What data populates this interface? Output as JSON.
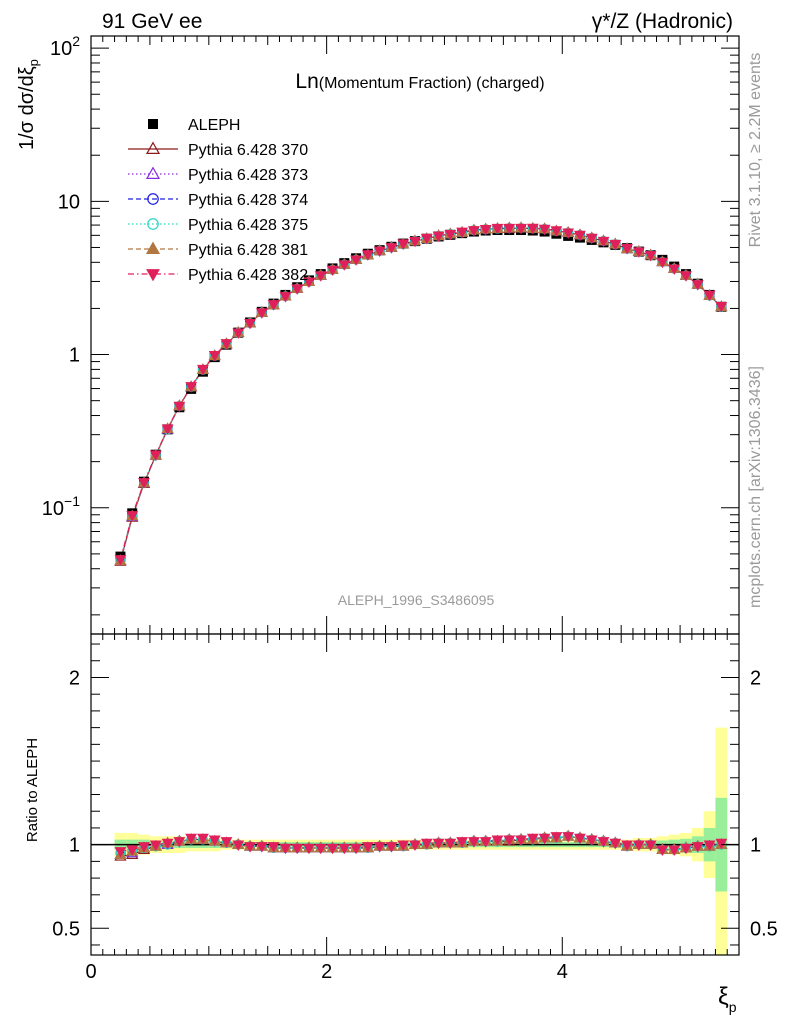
{
  "header": {
    "left_label": "91 GeV ee",
    "right_label": "γ*/Z (Hadronic)"
  },
  "side_labels": {
    "rivet": "Rivet 3.1.10, ≥ 2.2M events",
    "mcplots": "mcplots.cern.ch [arXiv:1306.3436]"
  },
  "chart_data": {
    "type": "scatter",
    "title_prefix": "Ln",
    "title_rest": "(Momentum Fraction) (charged)",
    "analysis_id": "ALEPH_1996_S3486095",
    "xlabel_main": "ξ",
    "xlabel_sub": "p",
    "ylabel": "1/σ dσ/dξ",
    "ylabel_sub": "p",
    "ratio_ylabel": "Ratio to ALEPH",
    "xlim": [
      0,
      5.5
    ],
    "ylim": [
      0.015,
      120
    ],
    "yscale": "log",
    "ratio_ylim": [
      0.34,
      2.26
    ],
    "x_ticks": [
      "0",
      "2",
      "4"
    ],
    "y_ticks_main": [
      {
        "mant": "10",
        "exp": "2",
        "v": 100
      },
      {
        "mant": "10",
        "exp": "",
        "v": 10
      },
      {
        "mant": "1",
        "exp": "",
        "v": 1
      },
      {
        "mant": "10",
        "exp": "−1",
        "v": 0.1
      }
    ],
    "y_ticks_ratio": [
      "0.5",
      "1",
      "2"
    ],
    "x": [
      0.25,
      0.35,
      0.45,
      0.55,
      0.65,
      0.75,
      0.85,
      0.95,
      1.05,
      1.15,
      1.25,
      1.35,
      1.45,
      1.55,
      1.65,
      1.75,
      1.85,
      1.95,
      2.05,
      2.15,
      2.25,
      2.35,
      2.45,
      2.55,
      2.65,
      2.75,
      2.85,
      2.95,
      3.05,
      3.15,
      3.25,
      3.35,
      3.45,
      3.55,
      3.65,
      3.75,
      3.85,
      3.95,
      4.05,
      4.15,
      4.25,
      4.35,
      4.45,
      4.55,
      4.65,
      4.75,
      4.85,
      4.95,
      5.05,
      5.15,
      5.25,
      5.35
    ],
    "data_values": [
      0.048,
      0.092,
      0.148,
      0.222,
      0.325,
      0.453,
      0.597,
      0.773,
      0.962,
      1.16,
      1.39,
      1.62,
      1.9,
      2.15,
      2.45,
      2.75,
      3.05,
      3.35,
      3.65,
      3.95,
      4.25,
      4.55,
      4.8,
      5.05,
      5.3,
      5.5,
      5.7,
      5.9,
      6.05,
      6.2,
      6.35,
      6.45,
      6.5,
      6.5,
      6.5,
      6.45,
      6.35,
      6.15,
      5.95,
      5.8,
      5.6,
      5.4,
      5.2,
      4.95,
      4.7,
      4.45,
      4.15,
      3.75,
      3.35,
      2.9,
      2.45,
      2.05
    ],
    "ratio_band_yellow": [
      0.07,
      0.07,
      0.06,
      0.05,
      0.05,
      0.05,
      0.04,
      0.04,
      0.04,
      0.03,
      0.03,
      0.03,
      0.03,
      0.03,
      0.03,
      0.03,
      0.03,
      0.03,
      0.03,
      0.03,
      0.03,
      0.03,
      0.03,
      0.03,
      0.03,
      0.03,
      0.03,
      0.03,
      0.03,
      0.03,
      0.03,
      0.03,
      0.03,
      0.03,
      0.03,
      0.03,
      0.03,
      0.03,
      0.03,
      0.03,
      0.03,
      0.03,
      0.03,
      0.03,
      0.04,
      0.04,
      0.05,
      0.06,
      0.07,
      0.1,
      0.2,
      0.7
    ],
    "ratio_band_green": [
      0.03,
      0.03,
      0.03,
      0.02,
      0.02,
      0.02,
      0.02,
      0.02,
      0.02,
      0.015,
      0.015,
      0.015,
      0.015,
      0.015,
      0.015,
      0.015,
      0.015,
      0.015,
      0.015,
      0.015,
      0.015,
      0.015,
      0.015,
      0.015,
      0.015,
      0.015,
      0.015,
      0.015,
      0.015,
      0.015,
      0.015,
      0.015,
      0.015,
      0.015,
      0.015,
      0.015,
      0.015,
      0.015,
      0.015,
      0.015,
      0.015,
      0.015,
      0.015,
      0.015,
      0.02,
      0.02,
      0.025,
      0.03,
      0.035,
      0.05,
      0.1,
      0.28
    ],
    "series": [
      {
        "name": "ALEPH",
        "marker": "square",
        "color": "#000000",
        "line": "none"
      },
      {
        "name": "Pythia 6.428 370",
        "marker": "triangle-open",
        "color": "#8b1a1a",
        "line": "solid",
        "ratio": [
          0.93,
          0.94,
          0.97,
          0.99,
          1.0,
          1.02,
          1.03,
          1.03,
          1.02,
          1.01,
          1.0,
          0.99,
          0.99,
          0.98,
          0.98,
          0.98,
          0.98,
          0.98,
          0.98,
          0.98,
          0.98,
          0.98,
          0.99,
          0.99,
          0.99,
          1.0,
          1.0,
          1.01,
          1.01,
          1.01,
          1.02,
          1.02,
          1.02,
          1.02,
          1.03,
          1.03,
          1.04,
          1.04,
          1.05,
          1.04,
          1.03,
          1.02,
          1.01,
          0.99,
          1.0,
          1.0,
          0.97,
          0.97,
          0.98,
          0.99,
          0.99,
          1.0
        ]
      },
      {
        "name": "Pythia 6.428 373",
        "marker": "triangle-open",
        "color": "#8a2be2",
        "line": "dotted",
        "ratio": [
          0.94,
          0.95,
          0.98,
          0.99,
          1.0,
          1.02,
          1.03,
          1.03,
          1.02,
          1.01,
          1.0,
          0.99,
          0.99,
          0.98,
          0.98,
          0.98,
          0.98,
          0.98,
          0.98,
          0.98,
          0.98,
          0.98,
          0.99,
          0.99,
          0.99,
          1.0,
          1.0,
          1.01,
          1.01,
          1.01,
          1.02,
          1.02,
          1.02,
          1.03,
          1.03,
          1.03,
          1.04,
          1.04,
          1.05,
          1.04,
          1.03,
          1.02,
          1.01,
          0.99,
          1.0,
          1.0,
          0.97,
          0.97,
          0.98,
          0.99,
          0.99,
          1.0
        ]
      },
      {
        "name": "Pythia 6.428 374",
        "marker": "circle-open",
        "color": "#2020e0",
        "line": "dashed",
        "ratio": [
          0.95,
          0.96,
          0.98,
          0.99,
          1.0,
          1.02,
          1.03,
          1.03,
          1.02,
          1.01,
          1.0,
          0.99,
          0.99,
          0.98,
          0.98,
          0.98,
          0.98,
          0.98,
          0.98,
          0.98,
          0.98,
          0.98,
          0.99,
          0.99,
          0.99,
          1.0,
          1.0,
          1.01,
          1.01,
          1.01,
          1.02,
          1.02,
          1.02,
          1.03,
          1.03,
          1.03,
          1.04,
          1.04,
          1.05,
          1.04,
          1.03,
          1.02,
          1.01,
          0.99,
          1.0,
          1.0,
          0.97,
          0.97,
          0.98,
          0.99,
          0.99,
          1.0
        ]
      },
      {
        "name": "Pythia 6.428 375",
        "marker": "circle-open",
        "color": "#2ed6c4",
        "line": "dotted",
        "ratio": [
          0.95,
          0.96,
          0.98,
          0.99,
          1.0,
          1.02,
          1.03,
          1.03,
          1.02,
          1.01,
          1.0,
          0.99,
          0.99,
          0.98,
          0.98,
          0.98,
          0.98,
          0.98,
          0.98,
          0.98,
          0.98,
          0.98,
          0.99,
          0.99,
          0.99,
          1.0,
          1.0,
          1.01,
          1.01,
          1.01,
          1.02,
          1.02,
          1.02,
          1.03,
          1.03,
          1.03,
          1.04,
          1.04,
          1.05,
          1.04,
          1.03,
          1.02,
          1.01,
          0.99,
          1.0,
          1.0,
          0.97,
          0.97,
          0.98,
          0.99,
          0.99,
          1.0
        ]
      },
      {
        "name": "Pythia 6.428 381",
        "marker": "triangle-filled",
        "color": "#b07840",
        "line": "dashed",
        "ratio": [
          0.94,
          0.96,
          0.98,
          0.99,
          1.01,
          1.02,
          1.03,
          1.03,
          1.02,
          1.01,
          1.0,
          0.99,
          0.99,
          0.98,
          0.98,
          0.98,
          0.98,
          0.98,
          0.98,
          0.98,
          0.98,
          0.98,
          0.99,
          0.99,
          0.99,
          1.0,
          1.0,
          1.01,
          1.01,
          1.01,
          1.02,
          1.02,
          1.02,
          1.03,
          1.03,
          1.03,
          1.04,
          1.04,
          1.05,
          1.04,
          1.03,
          1.02,
          1.01,
          0.99,
          1.0,
          1.0,
          0.97,
          0.97,
          0.98,
          0.99,
          0.99,
          1.0
        ]
      },
      {
        "name": "Pythia 6.428 382",
        "marker": "triangle-down-filled",
        "color": "#e0205a",
        "line": "dashdot",
        "ratio": [
          0.96,
          0.97,
          0.99,
          1.0,
          1.01,
          1.02,
          1.04,
          1.04,
          1.03,
          1.02,
          1.0,
          0.99,
          0.99,
          0.99,
          0.98,
          0.98,
          0.98,
          0.98,
          0.98,
          0.98,
          0.98,
          0.99,
          0.99,
          0.99,
          1.0,
          1.0,
          1.01,
          1.01,
          1.01,
          1.02,
          1.02,
          1.02,
          1.03,
          1.03,
          1.03,
          1.04,
          1.04,
          1.05,
          1.05,
          1.04,
          1.03,
          1.02,
          1.01,
          1.0,
          1.0,
          1.0,
          0.97,
          0.97,
          0.98,
          0.99,
          1.0,
          1.01
        ]
      }
    ]
  }
}
